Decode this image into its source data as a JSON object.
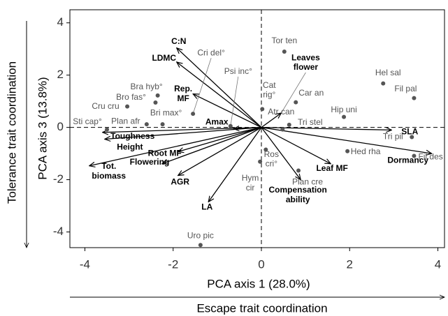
{
  "chart_data": {
    "type": "scatter",
    "xlabel": "PCA axis 1 (28.0%)",
    "ylabel": "PCA axis 3 (13.8%)",
    "x_descriptor": "Escape trait coordination",
    "y_descriptor": "Tolerance trait coordination",
    "xlim": [
      -4.34,
      4.15
    ],
    "ylim": [
      -4.6,
      4.5
    ],
    "xticks": [
      -4,
      -2,
      0,
      2,
      4
    ],
    "yticks": [
      -4,
      -2,
      0,
      2,
      4
    ],
    "point_color": "#555555",
    "arrow_color": "#000000",
    "points": {
      "names": [
        "Tor ten",
        "Hel sal",
        "Fil pal",
        "Cat rig°",
        "Car an",
        "Hip uni",
        "Atr can",
        "Tri stel",
        "Tri pil",
        "Fil des",
        "Hed rha",
        "Ros cri°",
        "Hym cir",
        "Plan cre",
        "Uro pic",
        "Sti cap°",
        "Plan afr",
        "Bri max°",
        "Cru cru",
        "Bro fas°",
        "Bra hyb°",
        "Cri del°",
        "Psi inc°"
      ],
      "x": [
        0.52,
        2.76,
        3.46,
        0.02,
        0.78,
        1.87,
        0.48,
        0.63,
        3.41,
        3.46,
        1.95,
        0.1,
        -0.03,
        0.84,
        -1.38,
        -3.5,
        -2.6,
        -2.24,
        -3.04,
        -2.4,
        -2.35,
        -1.55,
        -0.7
      ],
      "y": [
        2.9,
        1.68,
        1.12,
        0.7,
        0.96,
        0.4,
        -0.08,
        0.1,
        -0.37,
        -1.09,
        -0.91,
        -0.85,
        -1.31,
        -1.65,
        -4.5,
        -0.08,
        0.12,
        0.12,
        0.8,
        0.95,
        1.22,
        0.52,
        0.05
      ]
    },
    "arrows": {
      "names": [
        "C:N",
        "LDMC",
        "Rep. MF",
        "Amax",
        "Toughness",
        "Height",
        "Tot. biomass",
        "Root MF",
        "Flowering",
        "AGR",
        "LA",
        "Leaves flower",
        "SLA",
        "Dormancy",
        "Leaf MF",
        "Compensation ability"
      ],
      "x": [
        -1.92,
        -1.92,
        -1.55,
        -0.63,
        -3.6,
        -3.55,
        -3.9,
        -1.89,
        -2.25,
        -1.89,
        -1.2,
        0.45,
        2.95,
        3.86,
        1.57,
        0.89
      ],
      "y": [
        3.04,
        2.5,
        1.28,
        -0.05,
        -0.19,
        -0.45,
        -1.47,
        -0.93,
        -1.39,
        -1.84,
        -2.85,
        0.55,
        -0.1,
        -1.0,
        -1.39,
        -2.0
      ]
    }
  }
}
